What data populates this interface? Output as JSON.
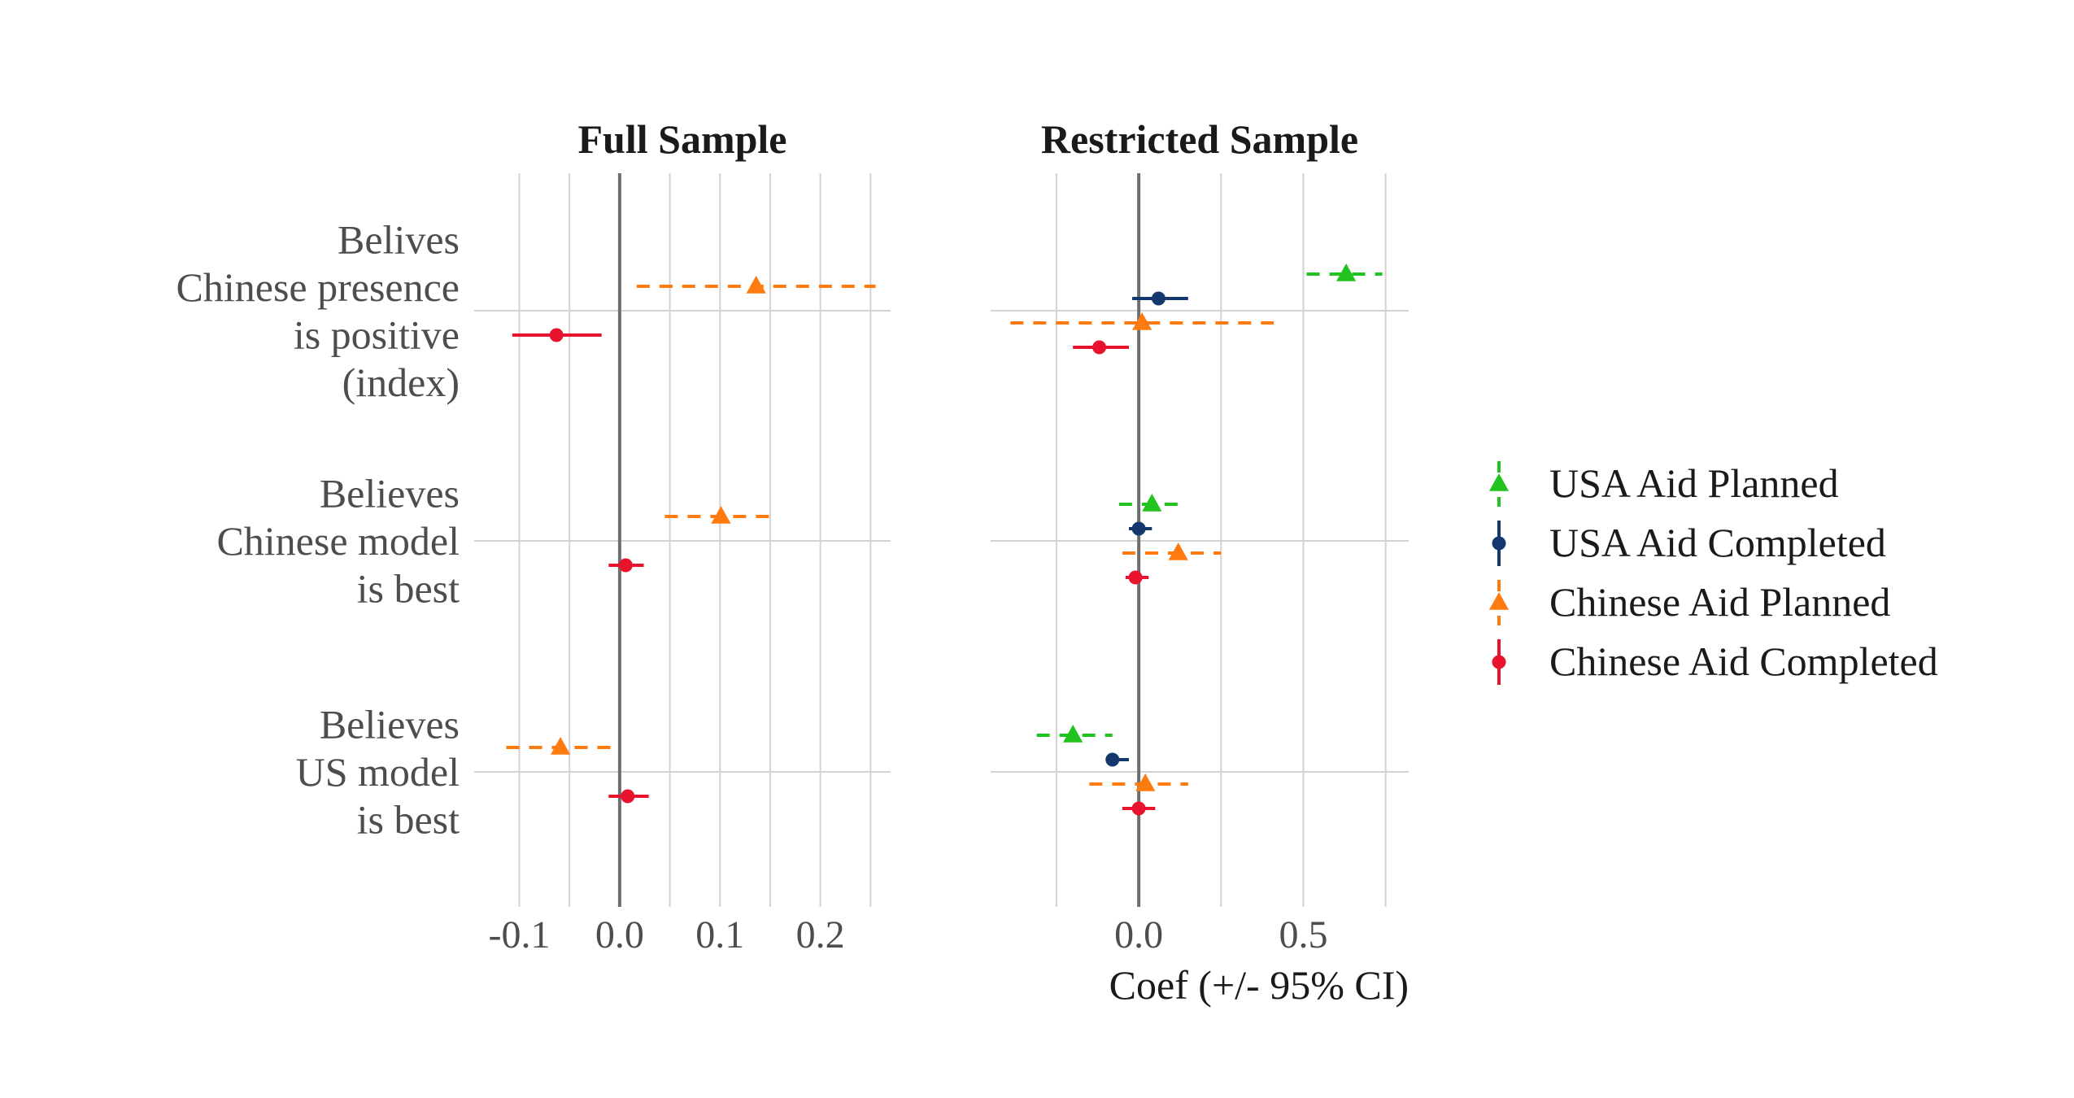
{
  "chart_data": {
    "type": "coefficient_plot",
    "xlabel": "Coef (+/- 95% CI)",
    "rows": [
      "Belives\nChinese presence\nis positive\n(index)",
      "Believes\nChinese model\nis best",
      "Believes\nUS model\nis best"
    ],
    "legend": {
      "placement": "right",
      "entries": [
        {
          "key": "usa_planned",
          "label": "USA Aid Planned",
          "color": "#22c31f",
          "marker": "triangle",
          "dashed": true
        },
        {
          "key": "usa_completed",
          "label": "USA Aid Completed",
          "color": "#12386e",
          "marker": "circle",
          "dashed": false
        },
        {
          "key": "china_planned",
          "label": "Chinese Aid Planned",
          "color": "#ff7a0f",
          "marker": "triangle",
          "dashed": true
        },
        {
          "key": "china_completed",
          "label": "Chinese Aid Completed",
          "color": "#e8132c",
          "marker": "circle",
          "dashed": false
        }
      ]
    },
    "panels": [
      {
        "title": "Full Sample",
        "xlim": [
          -0.145,
          0.27
        ],
        "ticks": [
          -0.1,
          0.0,
          0.1,
          0.2
        ],
        "tick_labels": [
          "-0.1",
          "0.0",
          "0.1",
          "0.2"
        ],
        "minor_ticks": [
          -0.05,
          0.05,
          0.15,
          0.25
        ],
        "points": [
          {
            "row": 0,
            "series": "china_planned",
            "est": 0.136,
            "lo": 0.017,
            "hi": 0.255
          },
          {
            "row": 0,
            "series": "china_completed",
            "est": -0.063,
            "lo": -0.107,
            "hi": -0.018
          },
          {
            "row": 1,
            "series": "china_planned",
            "est": 0.101,
            "lo": 0.045,
            "hi": 0.157
          },
          {
            "row": 1,
            "series": "china_completed",
            "est": 0.006,
            "lo": -0.011,
            "hi": 0.024
          },
          {
            "row": 2,
            "series": "china_planned",
            "est": -0.059,
            "lo": -0.113,
            "hi": -0.005
          },
          {
            "row": 2,
            "series": "china_completed",
            "est": 0.008,
            "lo": -0.011,
            "hi": 0.029
          }
        ]
      },
      {
        "title": "Restricted Sample",
        "xlim": [
          -0.45,
          0.82
        ],
        "ticks": [
          0.0,
          0.5
        ],
        "tick_labels": [
          "0.0",
          "0.5"
        ],
        "minor_ticks": [
          -0.25,
          0.25,
          0.75
        ],
        "points": [
          {
            "row": 0,
            "series": "usa_planned",
            "est": 0.63,
            "lo": 0.51,
            "hi": 0.74
          },
          {
            "row": 0,
            "series": "usa_completed",
            "est": 0.06,
            "lo": -0.02,
            "hi": 0.15
          },
          {
            "row": 0,
            "series": "china_planned",
            "est": 0.01,
            "lo": -0.39,
            "hi": 0.41
          },
          {
            "row": 0,
            "series": "china_completed",
            "est": -0.12,
            "lo": -0.2,
            "hi": -0.03
          },
          {
            "row": 1,
            "series": "usa_planned",
            "est": 0.04,
            "lo": -0.06,
            "hi": 0.13
          },
          {
            "row": 1,
            "series": "usa_completed",
            "est": 0.0,
            "lo": -0.03,
            "hi": 0.04
          },
          {
            "row": 1,
            "series": "china_planned",
            "est": 0.12,
            "lo": -0.05,
            "hi": 0.25
          },
          {
            "row": 1,
            "series": "china_completed",
            "est": -0.01,
            "lo": -0.04,
            "hi": 0.03
          },
          {
            "row": 2,
            "series": "usa_planned",
            "est": -0.2,
            "lo": -0.31,
            "hi": -0.08
          },
          {
            "row": 2,
            "series": "usa_completed",
            "est": -0.08,
            "lo": -0.1,
            "hi": -0.03
          },
          {
            "row": 2,
            "series": "china_planned",
            "est": 0.02,
            "lo": -0.15,
            "hi": 0.15
          },
          {
            "row": 2,
            "series": "china_completed",
            "est": 0.0,
            "lo": -0.05,
            "hi": 0.05
          }
        ]
      }
    ]
  }
}
